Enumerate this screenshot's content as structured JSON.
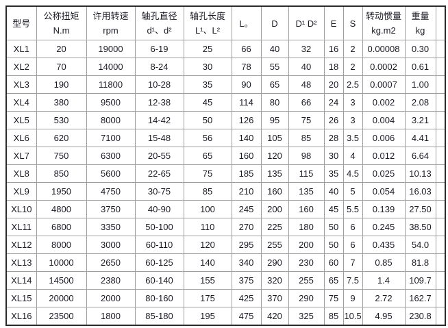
{
  "table": {
    "title": "coupling-specification-table",
    "columns": [
      {
        "key": "model",
        "label": "型号",
        "label2": ""
      },
      {
        "key": "torque",
        "label": "公称扭矩",
        "label2": "N.m"
      },
      {
        "key": "speed",
        "label": "许用转速",
        "label2": "rpm"
      },
      {
        "key": "bore-dia",
        "label": "轴孔直径",
        "label2": "d¹、d²"
      },
      {
        "key": "bore-len",
        "label": "轴孔长度",
        "label2": "L¹、L²"
      },
      {
        "key": "l0",
        "label": "L。",
        "label2": ""
      },
      {
        "key": "d",
        "label": "D",
        "label2": ""
      },
      {
        "key": "d1d2",
        "label": "D¹ D²",
        "label2": ""
      },
      {
        "key": "e",
        "label": "E",
        "label2": ""
      },
      {
        "key": "s",
        "label": "S",
        "label2": ""
      },
      {
        "key": "inertia",
        "label": "转动惯量",
        "label2": "kg.m2"
      },
      {
        "key": "weight",
        "label": "重量",
        "label2": "kg"
      }
    ],
    "rows": [
      [
        "XL1",
        "20",
        "19000",
        "6-19",
        "25",
        "66",
        "40",
        "32",
        "16",
        "2",
        "0.00008",
        "0.30"
      ],
      [
        "XL2",
        "70",
        "14000",
        "8-24",
        "30",
        "78",
        "55",
        "40",
        "18",
        "2",
        "0.0002",
        "0.61"
      ],
      [
        "XL3",
        "190",
        "11800",
        "10-28",
        "35",
        "90",
        "65",
        "48",
        "20",
        "2.5",
        "0.0007",
        "1.00"
      ],
      [
        "XL4",
        "380",
        "9500",
        "12-38",
        "45",
        "114",
        "80",
        "66",
        "24",
        "3",
        "0.002",
        "2.08"
      ],
      [
        "XL5",
        "530",
        "8000",
        "14-42",
        "50",
        "126",
        "95",
        "75",
        "26",
        "3",
        "0.004",
        "3.21"
      ],
      [
        "XL6",
        "620",
        "7100",
        "15-48",
        "56",
        "140",
        "105",
        "85",
        "28",
        "3.5",
        "0.006",
        "4.41"
      ],
      [
        "XL7",
        "750",
        "6300",
        "20-55",
        "65",
        "160",
        "120",
        "98",
        "30",
        "4",
        "0.012",
        "6.64"
      ],
      [
        "XL8",
        "850",
        "5600",
        "22-65",
        "75",
        "185",
        "135",
        "115",
        "35",
        "4.5",
        "0.025",
        "10.13"
      ],
      [
        "XL9",
        "1950",
        "4750",
        "30-75",
        "85",
        "210",
        "160",
        "135",
        "40",
        "5",
        "0.054",
        "16.03"
      ],
      [
        "XL10",
        "4800",
        "3750",
        "40-90",
        "100",
        "245",
        "200",
        "160",
        "45",
        "5.5",
        "0.139",
        "27.50"
      ],
      [
        "XL11",
        "6800",
        "3350",
        "50-100",
        "110",
        "270",
        "225",
        "180",
        "50",
        "6",
        "0.245",
        "38.50"
      ],
      [
        "XL12",
        "8000",
        "3000",
        "60-110",
        "120",
        "295",
        "255",
        "200",
        "50",
        "6",
        "0.435",
        "54.0"
      ],
      [
        "XL13",
        "10000",
        "2650",
        "60-125",
        "140",
        "340",
        "290",
        "230",
        "60",
        "7",
        "0.85",
        "81.8"
      ],
      [
        "XL14",
        "14500",
        "2380",
        "60-140",
        "155",
        "375",
        "320",
        "255",
        "65",
        "7.5",
        "1.4",
        "109.7"
      ],
      [
        "XL15",
        "20000",
        "2000",
        "80-160",
        "175",
        "425",
        "370",
        "290",
        "75",
        "9",
        "2.72",
        "162.7"
      ],
      [
        "XL16",
        "23500",
        "1800",
        "85-180",
        "195",
        "475",
        "420",
        "325",
        "85",
        "10.5",
        "4.95",
        "230.8"
      ]
    ]
  },
  "colors": {
    "text": "#1a1a24",
    "grid_line": "#9e9e9e",
    "outer_border": "#2b2b2b",
    "background": "#ffffff"
  }
}
